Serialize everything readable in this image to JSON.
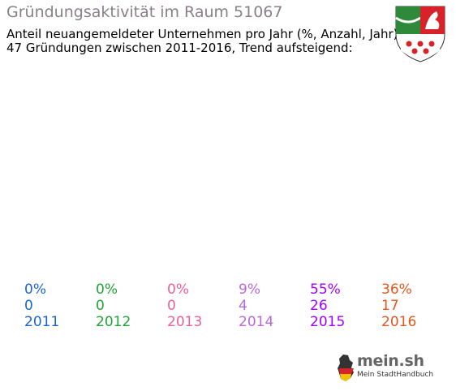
{
  "header": {
    "title": "Gründungsaktivität im Raum 51067",
    "subtitle_line1": "Anteil neuangemeldeter Unternehmen pro Jahr (%, Anzahl, Jahr)",
    "subtitle_line2": "47 Gründungen zwischen 2011-2016, Trend aufsteigend:"
  },
  "brand": {
    "name": "mein.sh",
    "tagline": "Mein StadtHandbuch"
  },
  "crest_icon": "nrw-coat-of-arms-icon",
  "chart_data": {
    "type": "bar",
    "title": "Gründungsaktivität im Raum 51067",
    "categories": [
      "2011",
      "2012",
      "2013",
      "2014",
      "2015",
      "2016"
    ],
    "series": [
      {
        "values": [
          0,
          0,
          0,
          4,
          26,
          17
        ]
      }
    ],
    "percent_labels": [
      "0%",
      "0%",
      "0%",
      "9%",
      "55%",
      "36%"
    ],
    "count_labels": [
      "0",
      "0",
      "0",
      "4",
      "26",
      "17"
    ],
    "colors": [
      "#1a66cc",
      "#21a336",
      "#e8609a",
      "#b86ad8",
      "#a200ff",
      "#e0581c"
    ],
    "grid": false,
    "legend": "none"
  }
}
